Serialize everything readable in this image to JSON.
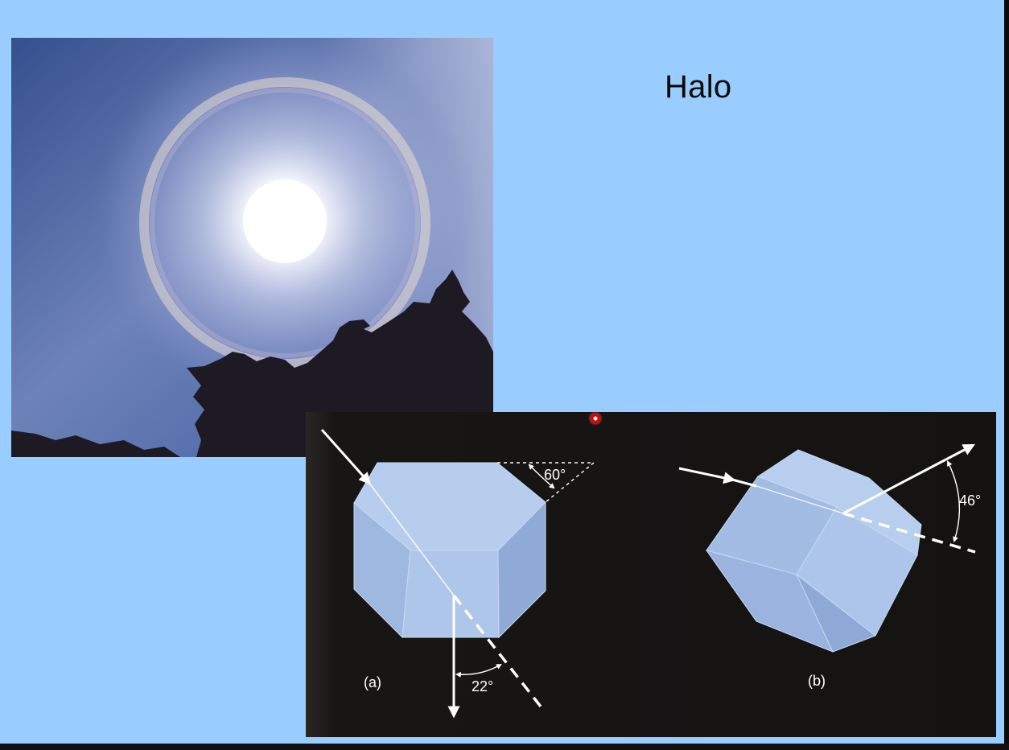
{
  "slide": {
    "title": "Halo",
    "background": "#99ccff"
  },
  "diagram": {
    "panel_a": {
      "label": "(a)",
      "top_angle": "60°",
      "deviation_angle": "22°"
    },
    "panel_b": {
      "label": "(b)",
      "deviation_angle": "46°"
    }
  },
  "pointer": {
    "color": "#e00000"
  }
}
